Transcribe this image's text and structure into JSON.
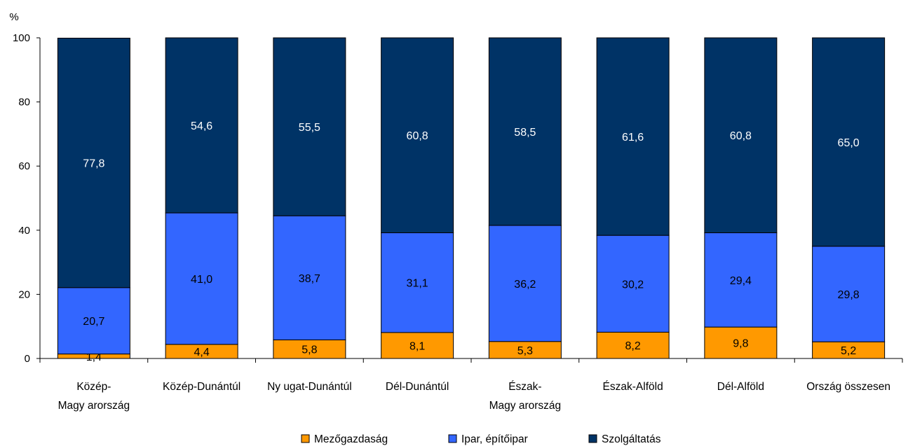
{
  "chart_data": {
    "type": "bar",
    "stacked": true,
    "unit_label": "%",
    "ylim": [
      0,
      100
    ],
    "yticks": [
      0,
      20,
      40,
      60,
      80,
      100
    ],
    "grid": false,
    "legend_position": "bottom",
    "categories": [
      [
        "Közép-",
        "Magy arország"
      ],
      [
        "Közép-Dunántúl"
      ],
      [
        "Ny ugat-Dunántúl"
      ],
      [
        "Dél-Dunántúl"
      ],
      [
        "Észak-",
        "Magy arország"
      ],
      [
        "Észak-Alföld"
      ],
      [
        "Dél-Alföld"
      ],
      [
        "Ország összesen"
      ]
    ],
    "series": [
      {
        "name": "Mezőgazdaság",
        "color": "#FF9900",
        "values": [
          1.4,
          4.4,
          5.8,
          8.1,
          5.3,
          8.2,
          9.8,
          5.2
        ],
        "labels": [
          "1,4",
          "4,4",
          "5,8",
          "8,1",
          "5,3",
          "8,2",
          "9,8",
          "5,2"
        ],
        "label_color": "#000000"
      },
      {
        "name": "Ipar, építőipar",
        "color": "#3366FF",
        "values": [
          20.7,
          41.0,
          38.7,
          31.1,
          36.2,
          30.2,
          29.4,
          29.8
        ],
        "labels": [
          "20,7",
          "41,0",
          "38,7",
          "31,1",
          "36,2",
          "30,2",
          "29,4",
          "29,8"
        ],
        "label_color": "#000000"
      },
      {
        "name": "Szolgáltatás",
        "color": "#003366",
        "values": [
          77.8,
          54.6,
          55.5,
          60.8,
          58.5,
          61.6,
          60.8,
          65.0
        ],
        "labels": [
          "77,8",
          "54,6",
          "55,5",
          "60,8",
          "58,5",
          "61,6",
          "60,8",
          "65,0"
        ],
        "label_color": "#FFFFFF"
      }
    ]
  }
}
